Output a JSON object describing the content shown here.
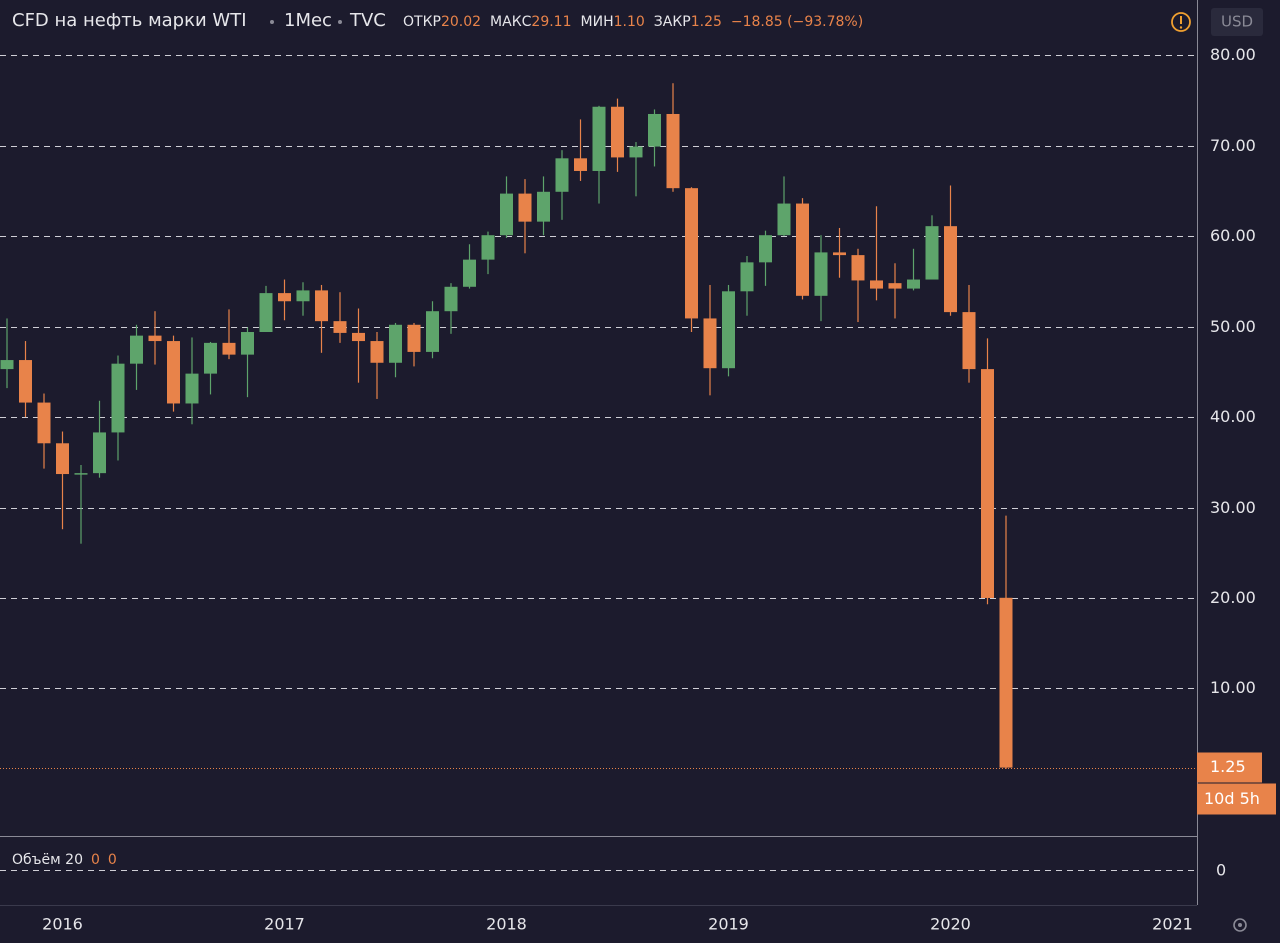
{
  "header": {
    "title": "CFD на нефть марки WTI",
    "interval": "1Мес",
    "source": "TVC",
    "open_label": "ОТКР",
    "open": "20.02",
    "high_label": "МАКС",
    "high": "29.11",
    "low_label": "МИН",
    "low": "1.10",
    "close_label": "ЗАКР",
    "close": "1.25",
    "change": "−18.85 (−93.78%)",
    "currency": "USD",
    "countdown": "10d 5h"
  },
  "volume": {
    "label": "Объём 20",
    "shown": [
      0,
      0
    ],
    "yticks": [
      0
    ]
  },
  "chart_data": {
    "type": "candlestick",
    "categories": [
      null,
      null,
      null,
      "2016",
      null,
      null,
      null,
      null,
      null,
      null,
      null,
      null,
      null,
      null,
      null,
      "2017",
      null,
      null,
      null,
      null,
      null,
      null,
      null,
      null,
      null,
      null,
      null,
      "2018",
      null,
      null,
      null,
      null,
      null,
      null,
      null,
      null,
      null,
      null,
      null,
      "2019",
      null,
      null,
      null,
      null,
      null,
      null,
      null,
      null,
      null,
      null,
      null,
      "2020",
      null,
      null,
      null
    ],
    "open": [
      45.3,
      46.3,
      41.6,
      37.1,
      33.7,
      33.8,
      38.3,
      45.9,
      49.0,
      48.4,
      41.5,
      44.8,
      48.2,
      46.9,
      49.4,
      53.7,
      52.8,
      54.0,
      50.6,
      49.3,
      48.4,
      46.0,
      50.2,
      47.2,
      51.7,
      54.4,
      57.4,
      60.1,
      64.7,
      61.6,
      64.9,
      68.6,
      67.2,
      74.3,
      68.7,
      69.9,
      73.5,
      65.3,
      50.9,
      45.4,
      53.9,
      57.1,
      60.1,
      63.6,
      53.4,
      58.2,
      57.9,
      55.1,
      54.8,
      54.2,
      55.2,
      61.1,
      51.6,
      45.3,
      20.02
    ],
    "high": [
      50.9,
      48.4,
      42.6,
      38.4,
      34.7,
      41.8,
      46.8,
      50.2,
      51.7,
      49.0,
      48.8,
      48.3,
      51.9,
      49.9,
      54.5,
      55.2,
      54.9,
      54.6,
      53.8,
      52.0,
      49.4,
      50.4,
      50.4,
      52.8,
      54.8,
      59.1,
      60.5,
      66.6,
      66.3,
      66.6,
      69.5,
      72.9,
      74.4,
      75.2,
      70.4,
      74.0,
      76.9,
      65.4,
      54.6,
      54.6,
      57.8,
      60.6,
      66.6,
      64.2,
      60.1,
      60.9,
      58.6,
      63.3,
      57.0,
      58.6,
      62.3,
      65.6,
      54.6,
      48.7,
      29.11
    ],
    "low": [
      43.2,
      40.0,
      34.3,
      27.6,
      26.0,
      33.3,
      35.2,
      43.0,
      45.8,
      40.6,
      39.2,
      42.5,
      46.4,
      42.2,
      49.4,
      50.7,
      51.2,
      47.1,
      48.2,
      43.8,
      42.0,
      44.4,
      45.6,
      46.5,
      49.2,
      54.2,
      55.8,
      59.8,
      58.1,
      60.1,
      61.8,
      66.1,
      63.6,
      67.1,
      64.4,
      67.7,
      64.9,
      49.4,
      42.4,
      44.5,
      51.2,
      54.5,
      60.0,
      53.0,
      50.6,
      55.4,
      50.5,
      52.9,
      50.9,
      54.0,
      55.3,
      51.2,
      43.8,
      19.3,
      1.1
    ],
    "close": [
      46.3,
      41.6,
      37.1,
      33.7,
      33.8,
      38.3,
      45.9,
      49.0,
      48.4,
      41.5,
      44.8,
      48.2,
      46.9,
      49.4,
      53.7,
      52.8,
      54.0,
      50.6,
      49.3,
      48.4,
      46.0,
      50.2,
      47.2,
      51.7,
      54.4,
      57.4,
      60.1,
      64.7,
      61.6,
      64.9,
      68.6,
      67.2,
      74.3,
      68.7,
      69.9,
      73.5,
      65.3,
      50.9,
      45.4,
      53.9,
      57.1,
      60.1,
      63.6,
      53.4,
      58.2,
      57.9,
      55.1,
      54.2,
      54.2,
      55.2,
      61.1,
      51.6,
      45.3,
      20.0,
      1.25
    ],
    "up_color": "#5ea46b",
    "down_color": "#e8834a",
    "ylim": [
      -6.2,
      86.1
    ],
    "yticks": [
      {
        "value": 10,
        "label": "10.00"
      },
      {
        "value": 20,
        "label": "20.00"
      },
      {
        "value": 30,
        "label": "30.00"
      },
      {
        "value": 40,
        "label": "40.00"
      },
      {
        "value": 50,
        "label": "50.00"
      },
      {
        "value": 60,
        "label": "60.00"
      },
      {
        "value": 70,
        "label": "70.00"
      },
      {
        "value": 80,
        "label": "80.00"
      }
    ],
    "xticks": [
      {
        "value": 3,
        "label": "2016"
      },
      {
        "value": 15,
        "label": "2017"
      },
      {
        "value": 27,
        "label": "2018"
      },
      {
        "value": 39,
        "label": "2019"
      },
      {
        "value": 51,
        "label": "2020"
      },
      {
        "value": 63,
        "label": "2021"
      }
    ],
    "grid": true
  }
}
